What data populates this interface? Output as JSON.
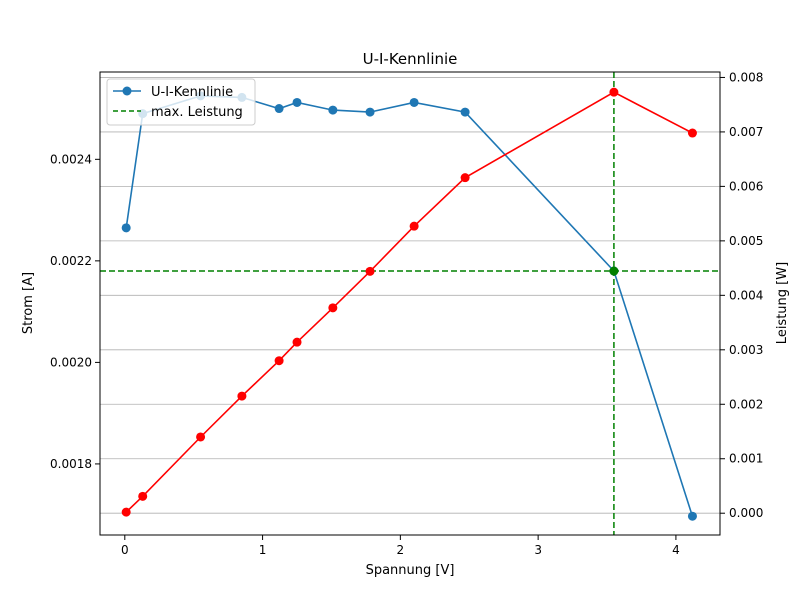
{
  "chart_data": {
    "type": "line",
    "title": "U-I-Kennlinie",
    "xlabel": "Spannung [V]",
    "ylabel_left": "Strom [A]",
    "ylabel_right": "Leistung [W]",
    "xlim": [
      -0.18,
      4.32
    ],
    "ylim_left": [
      0.00166,
      0.002572
    ],
    "ylim_right": [
      -0.0004,
      0.0081
    ],
    "x_ticks": [
      0,
      1,
      2,
      3,
      4
    ],
    "y_left_ticks": [
      0.0018,
      0.002,
      0.0022,
      0.0024
    ],
    "y_right_ticks": [
      0.0,
      0.001,
      0.002,
      0.003,
      0.004,
      0.005,
      0.006,
      0.007,
      0.008
    ],
    "grid": "horizontal, right axis",
    "legend_position": "top-left",
    "legend": [
      "U-I-Kennlinie",
      "max. Leistung"
    ],
    "series": [
      {
        "name": "U-I-Kennlinie",
        "axis": "left",
        "color": "#1f77b4",
        "x": [
          0.01,
          0.13,
          0.55,
          0.85,
          1.12,
          1.25,
          1.51,
          1.78,
          2.1,
          2.47,
          3.55,
          4.12
        ],
        "y": [
          0.002265,
          0.00249,
          0.002525,
          0.002522,
          0.0025,
          0.002512,
          0.002497,
          0.002493,
          0.002512,
          0.002493,
          0.00218,
          0.001697
        ]
      },
      {
        "name": "Leistung",
        "axis": "right",
        "color": "#ff0000",
        "x": [
          0.01,
          0.13,
          0.55,
          0.85,
          1.12,
          1.25,
          1.51,
          1.78,
          2.1,
          2.47,
          3.55,
          4.12
        ],
        "y": [
          2e-05,
          0.00031,
          0.0014,
          0.00215,
          0.0028,
          0.00314,
          0.00377,
          0.00444,
          0.00527,
          0.00616,
          0.00773,
          0.00698
        ]
      }
    ],
    "max_power": {
      "label": "max. Leistung",
      "color": "#008000",
      "x": 3.55,
      "y_current": 0.00218
    }
  }
}
